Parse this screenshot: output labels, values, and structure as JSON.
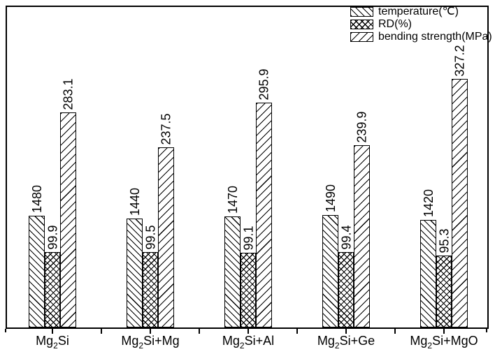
{
  "chart_data": {
    "type": "bar",
    "title": "",
    "categories": [
      "Mg₂Si",
      "Mg₂Si+Mg",
      "Mg₂Si+Al",
      "Mg₂Si+Ge",
      "Mg₂Si+MgO"
    ],
    "categories_rich": [
      {
        "pre": "Mg",
        "sub": "2",
        "post": "Si"
      },
      {
        "pre": "Mg",
        "sub": "2",
        "post": "Si+Mg"
      },
      {
        "pre": "Mg",
        "sub": "2",
        "post": "Si+Al"
      },
      {
        "pre": "Mg",
        "sub": "2",
        "post": "Si+Ge"
      },
      {
        "pre": "Mg",
        "sub": "2",
        "post": "Si+MgO"
      }
    ],
    "series": [
      {
        "name": "temperature(℃)",
        "hatch": "backslash",
        "values": [
          1480,
          1440,
          1470,
          1490,
          1420
        ]
      },
      {
        "name": "RD(%)",
        "hatch": "cross",
        "values": [
          99.9,
          99.5,
          99.1,
          99.4,
          95.3
        ]
      },
      {
        "name": "bending strength(MPa)",
        "hatch": "slash",
        "values": [
          283.1,
          237.5,
          295.9,
          239.9,
          327.2
        ]
      }
    ],
    "bar_value_labels_rotated": true,
    "legend_position": "top-right-inside",
    "grid": false,
    "y_axis_shown": false,
    "colors": {
      "bar_fill": "#ffffff",
      "line": "#000000",
      "text": "#000000",
      "background": "#ffffff"
    }
  }
}
